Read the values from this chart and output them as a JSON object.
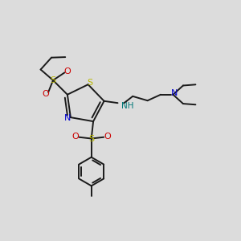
{
  "bg_color": "#dcdcdc",
  "bond_color": "#1a1a1a",
  "S_color": "#b8b800",
  "N_color": "#0000cc",
  "O_color": "#cc0000",
  "NH_color": "#007777",
  "line_width": 1.4,
  "figsize": [
    3.0,
    3.0
  ],
  "dpi": 100,
  "xlim": [
    0,
    10
  ],
  "ylim": [
    0,
    10
  ]
}
